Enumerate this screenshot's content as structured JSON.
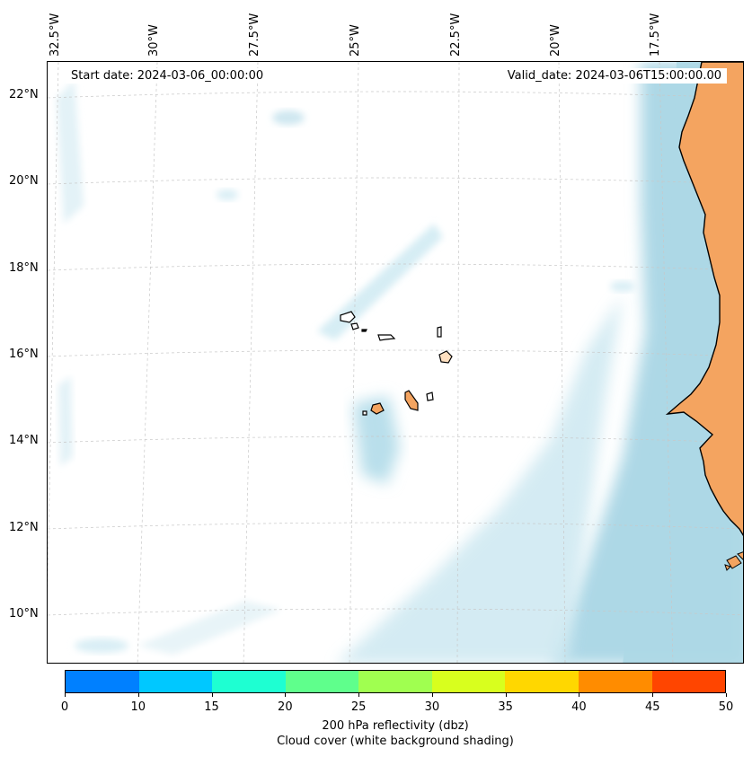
{
  "header": {
    "start_date": "Start date: 2024-03-06_00:00:00",
    "valid_date": "Valid_date: 2024-03-06T15:00:00.00"
  },
  "map": {
    "lon_labels": [
      "32.5°W",
      "30°W",
      "27.5°W",
      "25°W",
      "22.5°W",
      "20°W",
      "17.5°W"
    ],
    "lat_labels": [
      "22°N",
      "20°N",
      "18°N",
      "16°N",
      "14°N",
      "12°N",
      "10°N"
    ],
    "land_color": "#f4a460",
    "cloud_color": "#add8e6",
    "gridlines": "on"
  },
  "colorbar": {
    "ticks": [
      "0",
      "10",
      "15",
      "20",
      "25",
      "30",
      "35",
      "40",
      "45",
      "50"
    ],
    "colors": [
      "#0080ff",
      "#00c8ff",
      "#1effd2",
      "#5fff8c",
      "#a0ff50",
      "#d8ff1e",
      "#ffd700",
      "#ff8c00",
      "#ff4500"
    ],
    "label_line1": "200 hPa reflectivity (dbz)",
    "label_line2": "Cloud cover (white background shading)"
  }
}
